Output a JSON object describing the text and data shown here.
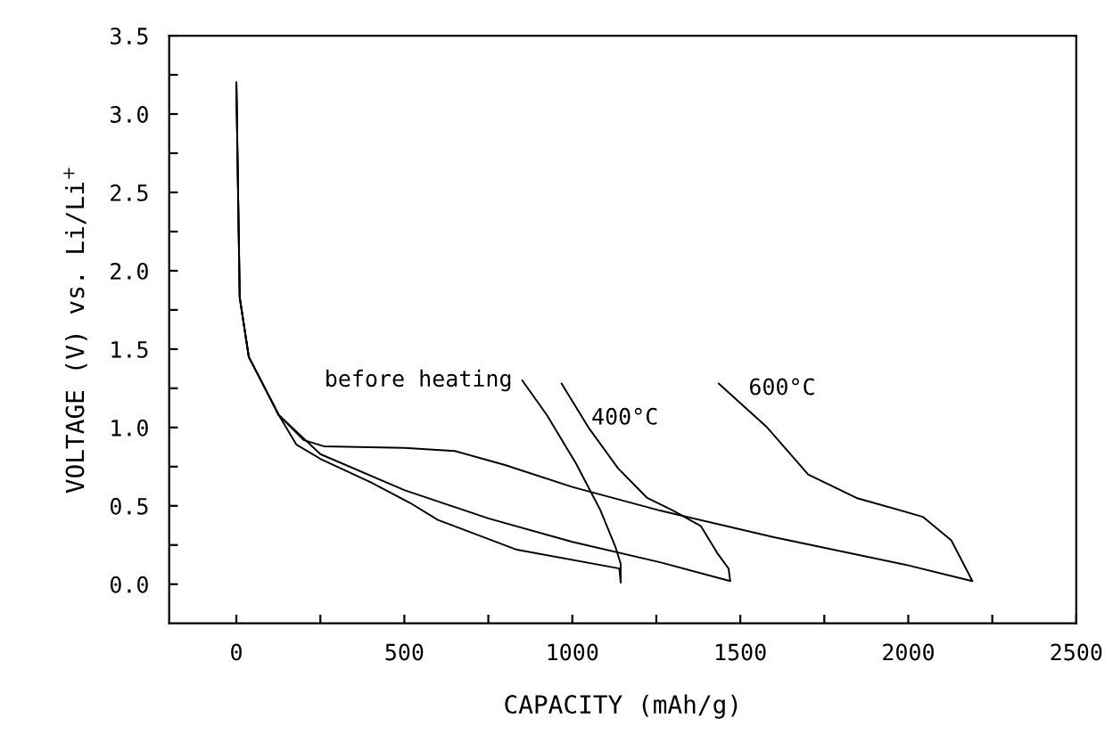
{
  "chart_data": {
    "type": "line",
    "xlabel": "CAPACITY (mAh/g)",
    "ylabel": "VOLTAGE (V) vs. Li/Li$^{+}$",
    "series": [
      {
        "name": "before heating",
        "color": "#000000",
        "x": [
          0,
          10,
          37,
          90,
          126,
          179,
          250,
          400,
          516,
          600,
          835,
          1140,
          1144,
          1144,
          1128,
          1084,
          1011,
          924,
          851
        ],
        "values": [
          3.2,
          1.83,
          1.45,
          1.23,
          1.08,
          0.89,
          0.8,
          0.65,
          0.52,
          0.41,
          0.22,
          0.1,
          0.01,
          0.13,
          0.24,
          0.47,
          0.77,
          1.08,
          1.3
        ]
      },
      {
        "name": "400°C",
        "color": "#000000",
        "x": [
          0,
          10,
          37,
          90,
          126,
          250,
          500,
          750,
          1000,
          1261,
          1470,
          1465,
          1431,
          1383,
          1300,
          1223,
          1136,
          1048,
          968
        ],
        "values": [
          3.2,
          1.83,
          1.45,
          1.23,
          1.08,
          0.83,
          0.6,
          0.42,
          0.27,
          0.14,
          0.02,
          0.1,
          0.2,
          0.37,
          0.47,
          0.55,
          0.74,
          1.0,
          1.28
        ]
      },
      {
        "name": "600°C",
        "color": "#000000",
        "x": [
          0,
          10,
          37,
          90,
          126,
          200,
          260,
          500,
          650,
          800,
          1000,
          1261,
          1600,
          2000,
          2190,
          2191,
          2128,
          2043,
          1846,
          1702,
          1580,
          1436
        ],
        "values": [
          3.2,
          1.83,
          1.45,
          1.23,
          1.08,
          0.92,
          0.88,
          0.87,
          0.85,
          0.76,
          0.62,
          0.47,
          0.3,
          0.12,
          0.02,
          0.02,
          0.28,
          0.43,
          0.55,
          0.7,
          1.0,
          1.28
        ]
      }
    ],
    "xlim": [
      -200,
      2500
    ],
    "ylim": [
      -0.25,
      3.5
    ],
    "xticks": [
      0,
      {
        "value": 250,
        "label": null
      },
      500,
      {
        "value": 750,
        "label": null
      },
      1000,
      {
        "value": 1250,
        "label": null
      },
      1500,
      {
        "value": 1750,
        "label": null
      },
      2000,
      {
        "value": 2250,
        "label": null
      },
      2500
    ],
    "yticks": [
      {
        "value": 0,
        "label": "0.0"
      },
      {
        "value": 0.25,
        "label": null
      },
      {
        "value": 0.5,
        "label": "0.5"
      },
      {
        "value": 0.75,
        "label": null
      },
      {
        "value": 1.0,
        "label": "1.0"
      },
      {
        "value": 1.25,
        "label": null
      },
      {
        "value": 1.5,
        "label": "1.5"
      },
      {
        "value": 1.75,
        "label": null
      },
      {
        "value": 2.0,
        "label": "2.0"
      },
      {
        "value": 2.25,
        "label": null
      },
      {
        "value": 2.5,
        "label": "2.5"
      },
      {
        "value": 2.75,
        "label": null
      },
      {
        "value": 3.0,
        "label": "3.0"
      },
      {
        "value": 3.25,
        "label": null
      },
      {
        "value": 3.5,
        "label": "3.5"
      }
    ],
    "grid": false,
    "legend": false,
    "marker": "none",
    "line_style": "solid"
  }
}
